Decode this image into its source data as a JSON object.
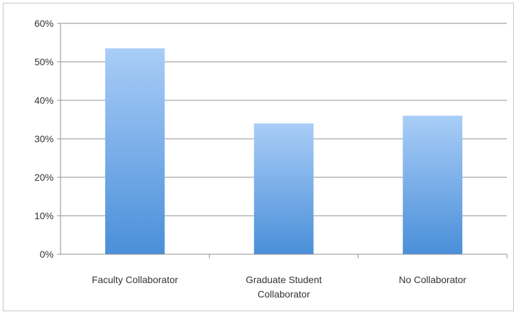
{
  "chart_data": {
    "type": "bar",
    "categories": [
      [
        "Faculty Collaborator"
      ],
      [
        "Graduate Student",
        "Collaborator"
      ],
      [
        "No Collaborator"
      ]
    ],
    "values": [
      0.535,
      0.34,
      0.36
    ],
    "yticks": [
      "0%",
      "10%",
      "20%",
      "30%",
      "40%",
      "50%",
      "60%"
    ],
    "ylim": [
      0,
      0.6
    ],
    "grid": true,
    "legend": "none",
    "colors": {
      "bar_top": "#a9cdf7",
      "bar_bottom": "#4a8fd9",
      "grid": "#8c8c8c",
      "axis": "#8c8c8c"
    }
  }
}
